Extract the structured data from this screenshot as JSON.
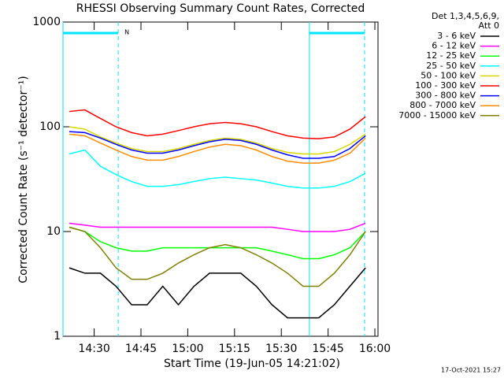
{
  "chart_data": {
    "type": "line",
    "title": "RHESSI Observing Summary Count Rates, Corrected",
    "x_label": "Start Time (19-Jun-05 14:21:02)",
    "y_label": "Corrected Count Rate (s⁻¹ detector⁻¹)",
    "legend_title": [
      "Det 1,3,4,5,6,9,",
      "Att 0"
    ],
    "timestamp": "17-Oct-2021 15:27",
    "log_y": true,
    "xlim": [
      860,
      961
    ],
    "ylim": [
      1,
      1000
    ],
    "xticks": [
      {
        "value": 870,
        "label": "14:30"
      },
      {
        "value": 885,
        "label": "14:45"
      },
      {
        "value": 900,
        "label": "15:00"
      },
      {
        "value": 915,
        "label": "15:15"
      },
      {
        "value": 930,
        "label": "15:30"
      },
      {
        "value": 945,
        "label": "15:45"
      },
      {
        "value": 960,
        "label": "16:00"
      }
    ],
    "yticks": [
      1,
      10,
      100,
      1000
    ],
    "night_label": "N",
    "night": [
      {
        "start": 860,
        "end": 877.7
      },
      {
        "start": 939,
        "end": 956.7
      }
    ],
    "night_color": "#00e5ff",
    "x": [
      862,
      867,
      872,
      877,
      882,
      887,
      892,
      897,
      902,
      907,
      912,
      917,
      922,
      927,
      932,
      937,
      942,
      947,
      952,
      957
    ],
    "series": [
      {
        "name": "3 - 6 keV",
        "color": "#000000",
        "values": [
          4.5,
          4,
          4,
          3,
          2,
          2,
          3,
          2,
          3,
          4,
          4,
          4,
          3,
          2,
          1.5,
          1.5,
          1.5,
          2,
          3,
          4.5
        ]
      },
      {
        "name": "6 - 12 keV",
        "color": "#ff00ff",
        "values": [
          12,
          11.5,
          11,
          11,
          11,
          11,
          11,
          11,
          11,
          11,
          11,
          11,
          11,
          11,
          10.5,
          10,
          10,
          10,
          10.5,
          12
        ]
      },
      {
        "name": "12 - 25 keV",
        "color": "#00ff00",
        "values": [
          11,
          10,
          8,
          7,
          6.5,
          6.5,
          7,
          7,
          7,
          7,
          7,
          7,
          7,
          6.5,
          6,
          5.5,
          5.5,
          6,
          7,
          10
        ]
      },
      {
        "name": "25 - 50 keV",
        "color": "#00ffff",
        "values": [
          55,
          60,
          42,
          35,
          30,
          27,
          27,
          28,
          30,
          32,
          33,
          32,
          31,
          29,
          27,
          26,
          26,
          27,
          30,
          36
        ]
      },
      {
        "name": "50 - 100 keV",
        "color": "#d8d800",
        "values": [
          100,
          95,
          80,
          70,
          62,
          58,
          58,
          62,
          68,
          74,
          78,
          76,
          70,
          62,
          57,
          55,
          55,
          58,
          68,
          85
        ]
      },
      {
        "name": "100 - 300 keV",
        "color": "#ff0000",
        "values": [
          140,
          145,
          120,
          100,
          88,
          82,
          85,
          92,
          100,
          107,
          110,
          107,
          100,
          90,
          82,
          78,
          77,
          80,
          95,
          125
        ]
      },
      {
        "name": "300 - 800 keV",
        "color": "#0000ff",
        "values": [
          90,
          88,
          78,
          68,
          60,
          56,
          56,
          60,
          66,
          72,
          76,
          74,
          68,
          60,
          54,
          50,
          50,
          52,
          62,
          82
        ]
      },
      {
        "name": "800 - 7000 keV",
        "color": "#ff8c00",
        "values": [
          85,
          82,
          70,
          60,
          52,
          48,
          48,
          52,
          58,
          64,
          68,
          66,
          60,
          52,
          47,
          45,
          45,
          48,
          56,
          78
        ]
      },
      {
        "name": "7000 - 15000 keV",
        "color": "#808000",
        "values": [
          11,
          10,
          7,
          4.5,
          3.5,
          3.5,
          4,
          5,
          6,
          7,
          7.5,
          7,
          6,
          5,
          4,
          3,
          3,
          4,
          6,
          10
        ]
      }
    ]
  }
}
